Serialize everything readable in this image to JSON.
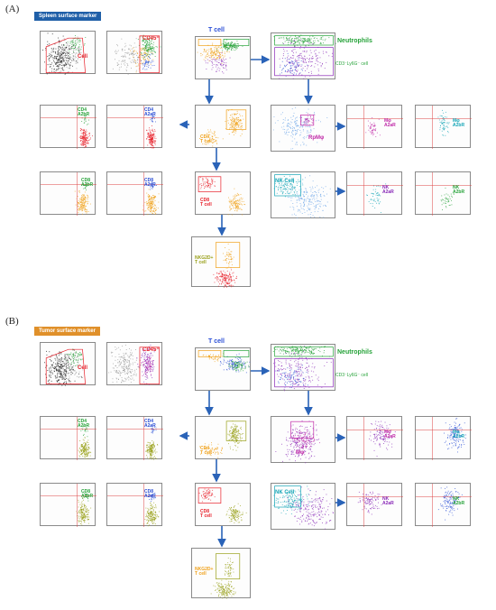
{
  "panel_a": {
    "label": "(A)",
    "banner": "Spleen surface marker",
    "banner_color": "#1f5fa8",
    "annotations": {
      "cell": "Cell",
      "cd45": "CD45⁺",
      "t_cell": "T cell",
      "neutrophils": "Neutrophils",
      "cd3_ly6g": "CD3⁻Ly6G⁻ cell",
      "cd4_a2br": "CD4\nA2bR",
      "cd4_a2ar": "CD4\nA2aR",
      "cd4_t": "CD4\nT cell",
      "rpm": "RpMφ",
      "mphi_a2ar": "Mφ\nA2aR",
      "mphi_a2br": "Mφ\nA2bR",
      "cd8_a2br": "CD8\nA2bR",
      "cd8_a2ar": "CD8\nA2aR",
      "cd8_t": "CD8\nT cell",
      "nk_cell": "NK Cell",
      "nk_a2ar": "NK\nA2aR",
      "nk_a2br": "NK\nA2bR",
      "nkg2d": "NKG2D+\nT cell"
    }
  },
  "panel_b": {
    "label": "(B)",
    "banner": "Tumor surface marker",
    "banner_color": "#e0902a",
    "annotations": {
      "cell": "Cell",
      "cd45": "CD45⁺",
      "t_cell": "T cell",
      "neutrophils": "Neutrophils",
      "cd3_ly6g": "CD3⁻Ly6G⁻ cell",
      "cd4_a2br": "CD4\nA2bR",
      "cd4_a2ar": "CD4\nA2aR",
      "cd4_t": "CD4\nT cell",
      "mphi": "Mφ",
      "mphi_a2ar": "Mφ\nA2aR",
      "mphi_a2br": "Mφ\nA2bR",
      "cd8_a2br": "CD8\nA2bR",
      "cd8_a2ar": "CD8\nA2aR",
      "cd8_t": "CD8\nT cell",
      "nk_cell": "NK Cell",
      "nk_a2ar": "NK\nA2aR",
      "nk_a2br": "NK\nA2bR",
      "nkg2d": "NKG2D+\nT cell"
    }
  },
  "colors": {
    "arrow": "#2a63b8",
    "red": "#e8202a",
    "green": "#27a33a",
    "blue": "#2b4fd6",
    "orange": "#f0a21c",
    "purple": "#8a2ab8",
    "magenta": "#c02aa8",
    "cyan": "#18a7b8",
    "lightblue": "#6fa8e8",
    "olive": "#9aa11b",
    "grey": "#9a9a9a",
    "black": "#111111"
  }
}
